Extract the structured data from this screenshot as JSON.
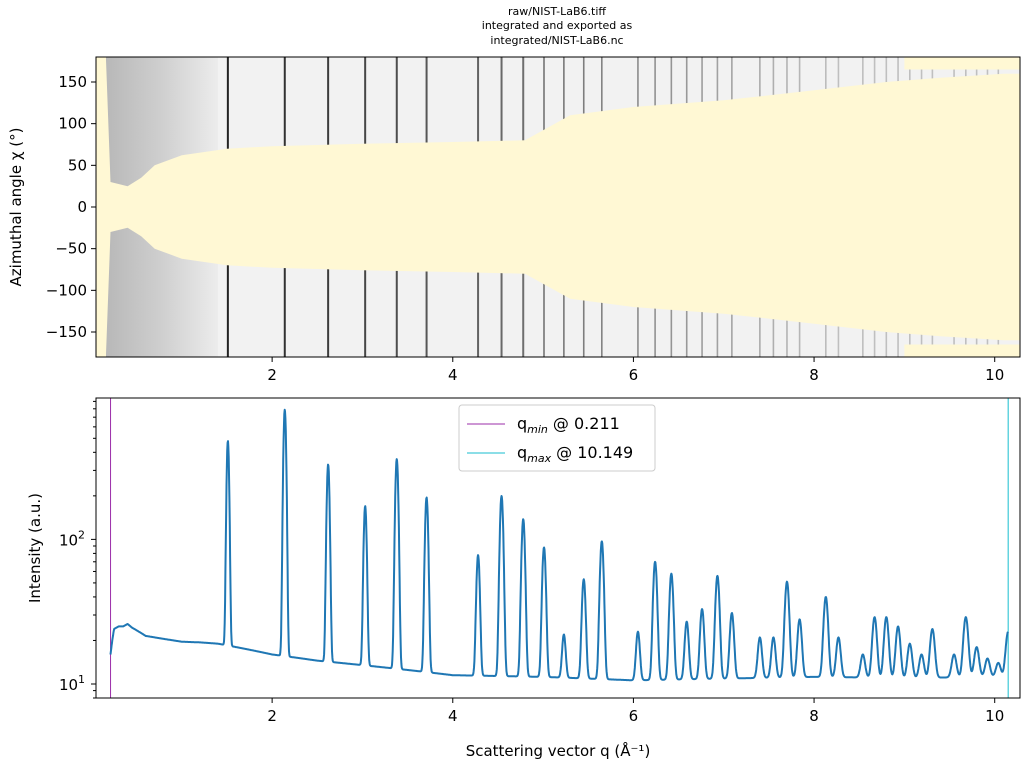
{
  "figure": {
    "title_lines": [
      "raw/NIST-LaB6.tiff",
      "integrated and exported as",
      "integrated/NIST-LaB6.nc"
    ]
  },
  "colors": {
    "mask": "#fff8d4",
    "detector_bg": "#f2f2f2",
    "detector_low_q": "#bfbfbf",
    "line": "#1f77b4",
    "qmin_line": "#9b2ea8",
    "qmax_line": "#17becf"
  },
  "chart_data": [
    {
      "type": "heatmap",
      "title": "",
      "xlabel": "",
      "ylabel": "Azimuthal angle χ (°)",
      "xlim": [
        0.05,
        10.28
      ],
      "ylim": [
        -180,
        180
      ],
      "x_ticks": [
        2,
        4,
        6,
        8,
        10
      ],
      "y_ticks": [
        150,
        100,
        50,
        0,
        -50,
        -100,
        -150
      ],
      "rings_q": [
        1.51,
        2.14,
        2.62,
        3.03,
        3.38,
        3.71,
        4.28,
        4.54,
        4.78,
        5.01,
        5.23,
        5.45,
        5.65,
        6.05,
        6.24,
        6.42,
        6.59,
        6.76,
        6.93,
        7.09,
        7.4,
        7.55,
        7.7,
        7.84,
        8.13,
        8.27,
        8.54,
        8.67,
        8.8,
        8.93,
        9.06,
        9.19,
        9.31,
        9.55,
        9.68,
        9.8,
        9.92,
        10.04
      ],
      "mask_half_width_deg": [
        [
          0.05,
          180
        ],
        [
          0.16,
          180
        ],
        [
          0.21,
          30
        ],
        [
          0.4,
          25
        ],
        [
          0.55,
          35
        ],
        [
          0.7,
          50
        ],
        [
          1.0,
          62
        ],
        [
          1.5,
          70
        ],
        [
          2.0,
          73
        ],
        [
          3.0,
          76
        ],
        [
          4.0,
          78
        ],
        [
          4.8,
          80
        ],
        [
          5.05,
          95
        ],
        [
          5.3,
          110
        ],
        [
          6.0,
          120
        ],
        [
          7.0,
          128
        ],
        [
          8.0,
          140
        ],
        [
          8.8,
          150
        ],
        [
          9.4,
          155
        ],
        [
          10.1,
          160
        ],
        [
          10.28,
          160
        ]
      ]
    },
    {
      "type": "line",
      "title": "",
      "xlabel": "Scattering vector q (Å⁻¹)",
      "ylabel": "Intensity (a.u.)",
      "xlim": [
        0.05,
        10.28
      ],
      "ylim": [
        8,
        950
      ],
      "y_scale": "log",
      "x_ticks": [
        2,
        4,
        6,
        8,
        10
      ],
      "y_major_ticks": [
        10,
        100
      ],
      "legend_position": "top-center",
      "baseline_points": [
        [
          0.211,
          16
        ],
        [
          0.25,
          24
        ],
        [
          0.3,
          25
        ],
        [
          0.35,
          25
        ],
        [
          0.4,
          26
        ],
        [
          0.45,
          24.5
        ],
        [
          0.6,
          21.5
        ],
        [
          0.8,
          20.5
        ],
        [
          1.0,
          19.6
        ],
        [
          1.2,
          19.4
        ],
        [
          1.4,
          19.0
        ],
        [
          1.7,
          17.5
        ],
        [
          2.0,
          16.0
        ],
        [
          2.5,
          14.5
        ],
        [
          3.0,
          13.5
        ],
        [
          3.5,
          12.5
        ],
        [
          4.0,
          11.5
        ],
        [
          5.0,
          11.2
        ],
        [
          6.0,
          10.6
        ],
        [
          7.0,
          10.9
        ],
        [
          8.0,
          11.2
        ],
        [
          9.0,
          11.0
        ],
        [
          10.0,
          11.2
        ],
        [
          10.149,
          11
        ]
      ],
      "peaks": [
        {
          "q": 1.51,
          "height": 480
        },
        {
          "q": 2.14,
          "height": 790
        },
        {
          "q": 2.62,
          "height": 330
        },
        {
          "q": 3.03,
          "height": 170
        },
        {
          "q": 3.38,
          "height": 360
        },
        {
          "q": 3.71,
          "height": 195
        },
        {
          "q": 4.28,
          "height": 78
        },
        {
          "q": 4.54,
          "height": 200
        },
        {
          "q": 4.78,
          "height": 138
        },
        {
          "q": 5.01,
          "height": 88
        },
        {
          "q": 5.23,
          "height": 22
        },
        {
          "q": 5.45,
          "height": 53
        },
        {
          "q": 5.65,
          "height": 97
        },
        {
          "q": 6.05,
          "height": 23
        },
        {
          "q": 6.24,
          "height": 70
        },
        {
          "q": 6.42,
          "height": 58
        },
        {
          "q": 6.59,
          "height": 27
        },
        {
          "q": 6.76,
          "height": 33
        },
        {
          "q": 6.93,
          "height": 56
        },
        {
          "q": 7.09,
          "height": 31
        },
        {
          "q": 7.4,
          "height": 21
        },
        {
          "q": 7.55,
          "height": 21
        },
        {
          "q": 7.7,
          "height": 51
        },
        {
          "q": 7.84,
          "height": 28
        },
        {
          "q": 8.13,
          "height": 40
        },
        {
          "q": 8.27,
          "height": 21
        },
        {
          "q": 8.54,
          "height": 16
        },
        {
          "q": 8.67,
          "height": 29
        },
        {
          "q": 8.8,
          "height": 29
        },
        {
          "q": 8.93,
          "height": 25
        },
        {
          "q": 9.06,
          "height": 19
        },
        {
          "q": 9.19,
          "height": 16
        },
        {
          "q": 9.31,
          "height": 24
        },
        {
          "q": 9.55,
          "height": 16
        },
        {
          "q": 9.68,
          "height": 29
        },
        {
          "q": 9.8,
          "height": 18
        },
        {
          "q": 9.92,
          "height": 15
        },
        {
          "q": 10.04,
          "height": 14
        },
        {
          "q": 10.149,
          "height": 23
        }
      ],
      "vlines": [
        {
          "q": 0.211,
          "legend_base": "q",
          "legend_sub": "min",
          "legend_value": "@ 0.211",
          "color_key": "qmin_line"
        },
        {
          "q": 10.149,
          "legend_base": "q",
          "legend_sub": "max",
          "legend_value": "@ 10.149",
          "color_key": "qmax_line"
        }
      ]
    }
  ]
}
